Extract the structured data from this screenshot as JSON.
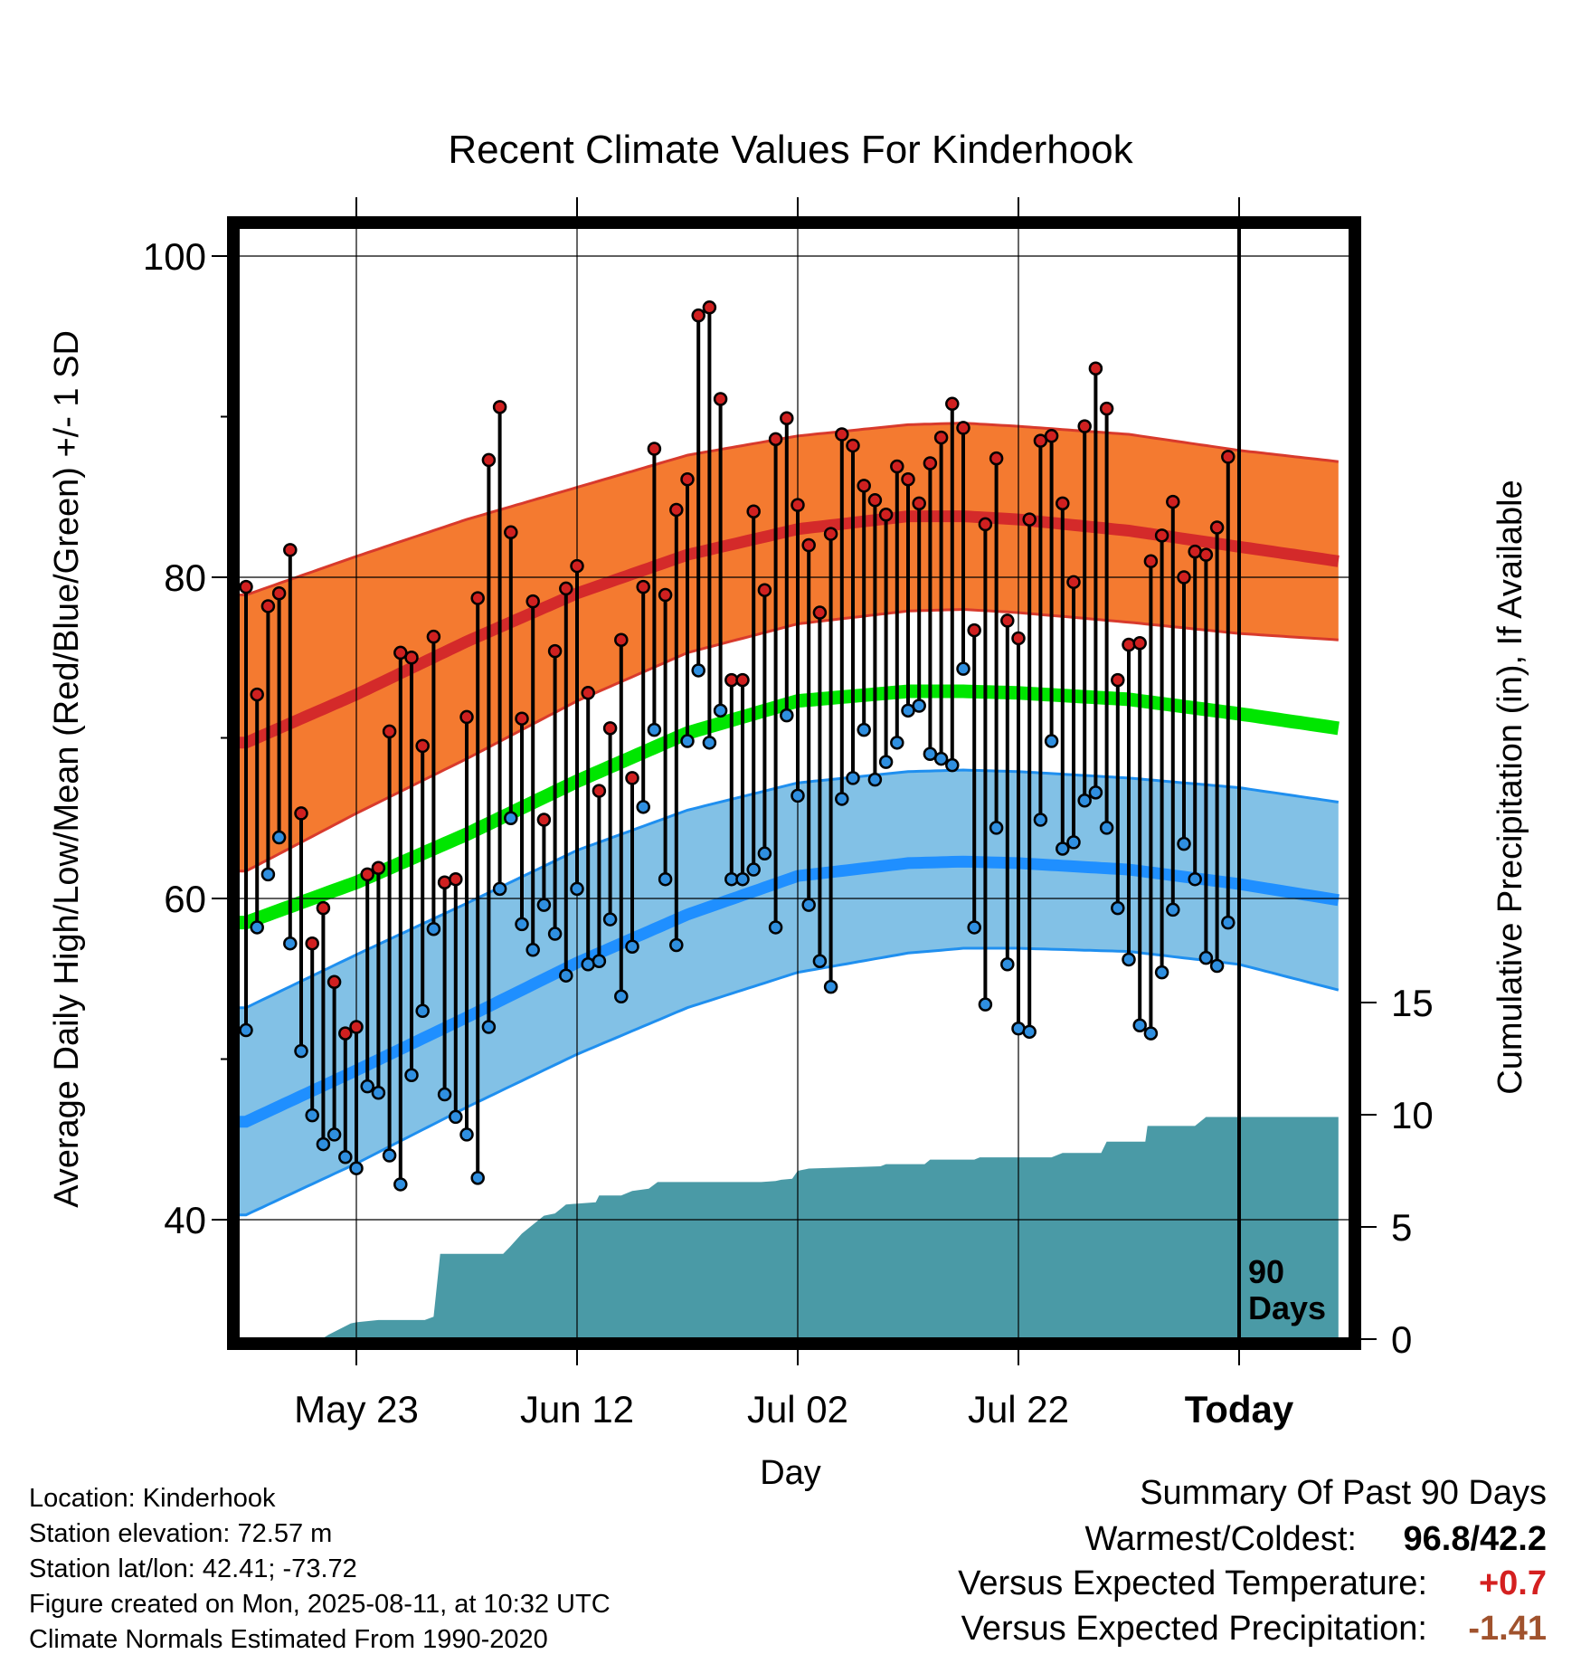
{
  "chart_data": {
    "type": "line",
    "title": "Recent Climate Values For Kinderhook",
    "xlabel": "Day",
    "ylabel": "Average Daily High/Low/Mean (Red/Blue/Green) +/- 1 SD",
    "y2label": "Cumulative Precipitation (in), If Available",
    "ylim": [
      33,
      102
    ],
    "yticks": [
      "40",
      "60",
      "80",
      "100"
    ],
    "y2lim": [
      0,
      20
    ],
    "y2ticks": [
      "0",
      "5",
      "10",
      "15"
    ],
    "xticks": [
      {
        "label": "May 23",
        "day": 10
      },
      {
        "label": "Jun 12",
        "day": 30
      },
      {
        "label": "Jul 02",
        "day": 50
      },
      {
        "label": "Jul 22",
        "day": 70
      },
      {
        "label": "Today",
        "day": 90
      }
    ],
    "today_marker": {
      "day": 90,
      "label_line1": "90",
      "label_line2": "Days"
    },
    "xlim": [
      -1,
      99
    ],
    "grid": true,
    "colors": {
      "high_band": "#f47a30",
      "high_band_edge": "#d83a2c",
      "high_mean": "#d42a2a",
      "low_band": "#82c1e6",
      "low_band_edge": "#1f8fef",
      "low_mean": "#1f8fff",
      "mean_line": "#00e600",
      "high_dot": "#d02020",
      "low_dot": "#2f8fe0",
      "precip_area": "#4a9aa6"
    },
    "normals": {
      "days": [
        0,
        10,
        20,
        30,
        40,
        50,
        60,
        65,
        70,
        80,
        90,
        99
      ],
      "high_mean": [
        69.7,
        72.7,
        76.0,
        79.0,
        81.4,
        83.0,
        83.8,
        83.8,
        83.6,
        82.9,
        81.9,
        81.0
      ],
      "high_upper": [
        78.9,
        81.3,
        83.6,
        85.6,
        87.6,
        88.8,
        89.5,
        89.6,
        89.4,
        88.9,
        87.9,
        87.2
      ],
      "high_lower": [
        61.7,
        65.3,
        68.7,
        72.3,
        75.3,
        77.1,
        77.9,
        78.0,
        77.8,
        77.2,
        76.5,
        76.1
      ],
      "mean": [
        58.5,
        61.0,
        64.0,
        67.3,
        70.3,
        72.3,
        72.9,
        72.9,
        72.8,
        72.4,
        71.5,
        70.6
      ],
      "low_mean": [
        46.1,
        49.3,
        52.6,
        56.0,
        59.0,
        61.4,
        62.2,
        62.3,
        62.2,
        61.8,
        60.9,
        59.9
      ],
      "low_upper": [
        53.2,
        56.5,
        59.7,
        63.0,
        65.5,
        67.2,
        67.9,
        68.0,
        67.9,
        67.5,
        66.9,
        66.0
      ],
      "low_lower": [
        40.3,
        43.5,
        47.0,
        50.3,
        53.2,
        55.4,
        56.6,
        56.9,
        56.9,
        56.7,
        55.9,
        54.3
      ]
    },
    "daily_high": [
      79.4,
      72.7,
      78.2,
      79.0,
      81.7,
      65.3,
      57.2,
      59.4,
      54.8,
      51.6,
      52.0,
      61.5,
      61.9,
      70.4,
      75.3,
      75.0,
      69.5,
      76.3,
      61.0,
      61.2,
      71.3,
      78.7,
      87.3,
      90.6,
      82.8,
      71.2,
      78.5,
      64.9,
      75.4,
      79.3,
      80.7,
      72.8,
      66.7,
      70.6,
      76.1,
      67.5,
      79.4,
      88.0,
      78.9,
      84.2,
      86.1,
      96.3,
      96.8,
      91.1,
      73.6,
      73.6,
      84.1,
      79.2,
      88.6,
      89.9,
      84.5,
      82.0,
      77.8,
      82.7,
      88.9,
      88.2,
      85.7,
      84.8,
      83.9,
      86.9,
      86.1,
      84.6,
      87.1,
      88.7,
      90.8,
      89.3,
      76.7,
      83.3,
      87.4,
      77.3,
      76.2,
      83.6,
      88.5,
      88.8,
      84.6,
      79.7,
      89.4,
      93.0,
      90.5,
      73.6,
      75.8,
      75.9,
      81.0,
      82.6,
      84.7,
      80.0,
      81.6,
      81.4,
      83.1,
      87.5
    ],
    "daily_low": [
      51.8,
      58.2,
      61.5,
      63.8,
      57.2,
      50.5,
      46.5,
      44.7,
      45.3,
      43.9,
      43.2,
      48.3,
      47.9,
      44.0,
      42.2,
      49.0,
      53.0,
      58.1,
      47.8,
      46.4,
      45.3,
      42.6,
      52.0,
      60.6,
      65.0,
      58.4,
      56.8,
      59.6,
      57.8,
      55.2,
      60.6,
      55.9,
      56.1,
      58.7,
      53.9,
      57.0,
      65.7,
      70.5,
      61.2,
      57.1,
      69.8,
      74.2,
      69.7,
      71.7,
      61.2,
      61.2,
      61.8,
      62.8,
      58.2,
      71.4,
      66.4,
      59.6,
      56.1,
      54.5,
      66.2,
      67.5,
      70.5,
      67.4,
      68.5,
      69.7,
      71.7,
      72.0,
      69.0,
      68.7,
      68.3,
      74.3,
      58.2,
      53.4,
      64.4,
      55.9,
      51.9,
      51.7,
      64.9,
      69.8,
      63.1,
      63.5,
      66.1,
      66.6,
      64.4,
      59.4,
      56.2,
      52.1,
      51.6,
      55.4,
      59.3,
      63.4,
      61.2,
      56.3,
      55.8,
      58.5
    ],
    "precip_cumulative": [
      [
        0,
        0
      ],
      [
        3.5,
        0
      ],
      [
        4,
        0.05
      ],
      [
        7,
        0.05
      ],
      [
        7.5,
        0.2
      ],
      [
        9.5,
        0.7
      ],
      [
        10,
        0.75
      ],
      [
        12,
        0.85
      ],
      [
        16.2,
        0.85
      ],
      [
        17,
        1.0
      ],
      [
        17.6,
        3.8
      ],
      [
        23.3,
        3.8
      ],
      [
        23.9,
        4.1
      ],
      [
        25,
        4.7
      ],
      [
        27,
        5.5
      ],
      [
        28,
        5.6
      ],
      [
        29,
        6.0
      ],
      [
        31.7,
        6.1
      ],
      [
        32,
        6.4
      ],
      [
        34,
        6.4
      ],
      [
        35,
        6.6
      ],
      [
        36.5,
        6.7
      ],
      [
        37.3,
        7.0
      ],
      [
        46.7,
        7.0
      ],
      [
        48,
        7.05
      ],
      [
        48.5,
        7.1
      ],
      [
        49.5,
        7.15
      ],
      [
        50,
        7.5
      ],
      [
        51,
        7.6
      ],
      [
        57.5,
        7.7
      ],
      [
        58,
        7.8
      ],
      [
        61.5,
        7.8
      ],
      [
        62,
        8.0
      ],
      [
        66,
        8.0
      ],
      [
        66.5,
        8.1
      ],
      [
        73,
        8.1
      ],
      [
        74,
        8.3
      ],
      [
        77.5,
        8.3
      ],
      [
        78,
        8.8
      ],
      [
        81.5,
        8.8
      ],
      [
        81.7,
        9.5
      ],
      [
        86,
        9.5
      ],
      [
        87,
        9.9
      ],
      [
        90,
        9.9
      ],
      [
        99,
        9.9
      ]
    ]
  },
  "footer": {
    "location": "Location: Kinderhook",
    "elevation": "Station elevation: 72.57 m",
    "latlon": "Station lat/lon: 42.41; -73.72",
    "created": "Figure created on Mon, 2025-08-11, at 10:32 UTC",
    "normals": "Climate Normals Estimated From 1990-2020"
  },
  "summary": {
    "title": "Summary Of Past 90 Days",
    "warm_cold_label": "Warmest/Coldest:",
    "warm_cold_value": "96.8/42.2",
    "temp_label": "Versus Expected Temperature:",
    "temp_value": "+0.7",
    "temp_color": "#d42020",
    "precip_label": "Versus Expected Precipitation:",
    "precip_value": "-1.41",
    "precip_color": "#a0522d"
  }
}
